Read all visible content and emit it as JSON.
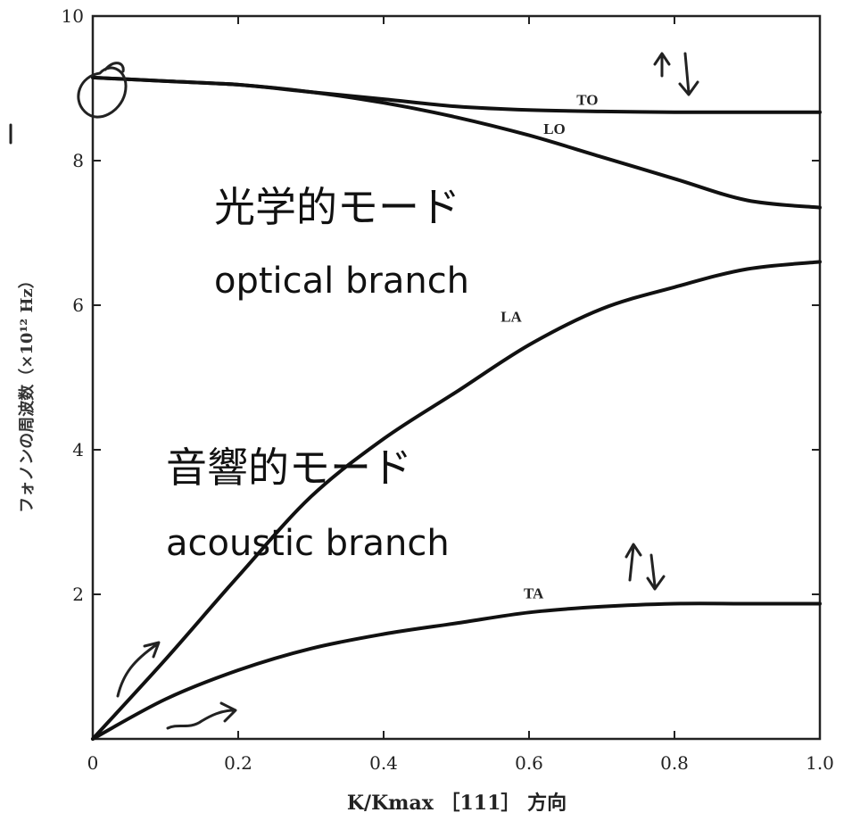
{
  "chart_data": {
    "type": "line",
    "xlabel": "K/Kmax ［111］ 方向",
    "ylabel": "フォノンの周波数（×10¹² Hz）",
    "xlim": [
      0,
      1.0
    ],
    "ylim": [
      0,
      10
    ],
    "x_ticks": [
      "0",
      "0.2",
      "0.4",
      "0.6",
      "0.8",
      "1.0"
    ],
    "y_ticks": [
      "2",
      "4",
      "6",
      "8",
      "10"
    ],
    "grid": false,
    "series": [
      {
        "name": "TO",
        "points": [
          [
            0,
            9.15
          ],
          [
            0.1,
            9.1
          ],
          [
            0.2,
            9.05
          ],
          [
            0.3,
            8.95
          ],
          [
            0.4,
            8.85
          ],
          [
            0.5,
            8.75
          ],
          [
            0.6,
            8.7
          ],
          [
            0.7,
            8.68
          ],
          [
            0.8,
            8.67
          ],
          [
            0.9,
            8.67
          ],
          [
            1.0,
            8.67
          ]
        ]
      },
      {
        "name": "LO",
        "points": [
          [
            0,
            9.15
          ],
          [
            0.1,
            9.1
          ],
          [
            0.2,
            9.05
          ],
          [
            0.3,
            8.95
          ],
          [
            0.4,
            8.8
          ],
          [
            0.5,
            8.6
          ],
          [
            0.6,
            8.35
          ],
          [
            0.7,
            8.05
          ],
          [
            0.8,
            7.75
          ],
          [
            0.9,
            7.45
          ],
          [
            1.0,
            7.35
          ]
        ]
      },
      {
        "name": "LA",
        "points": [
          [
            0,
            0
          ],
          [
            0.1,
            1.1
          ],
          [
            0.2,
            2.25
          ],
          [
            0.3,
            3.35
          ],
          [
            0.4,
            4.15
          ],
          [
            0.5,
            4.8
          ],
          [
            0.6,
            5.45
          ],
          [
            0.7,
            5.95
          ],
          [
            0.8,
            6.25
          ],
          [
            0.9,
            6.5
          ],
          [
            1.0,
            6.6
          ]
        ]
      },
      {
        "name": "TA",
        "points": [
          [
            0,
            0
          ],
          [
            0.1,
            0.55
          ],
          [
            0.2,
            0.95
          ],
          [
            0.3,
            1.25
          ],
          [
            0.4,
            1.45
          ],
          [
            0.5,
            1.6
          ],
          [
            0.6,
            1.75
          ],
          [
            0.7,
            1.83
          ],
          [
            0.8,
            1.87
          ],
          [
            0.9,
            1.87
          ],
          [
            1.0,
            1.87
          ]
        ]
      }
    ],
    "annotations": {
      "optical_jp": "光学的モード",
      "optical_en": "optical branch",
      "acoustic_jp": "音響的モード",
      "acoustic_en": "acoustic branch"
    }
  }
}
